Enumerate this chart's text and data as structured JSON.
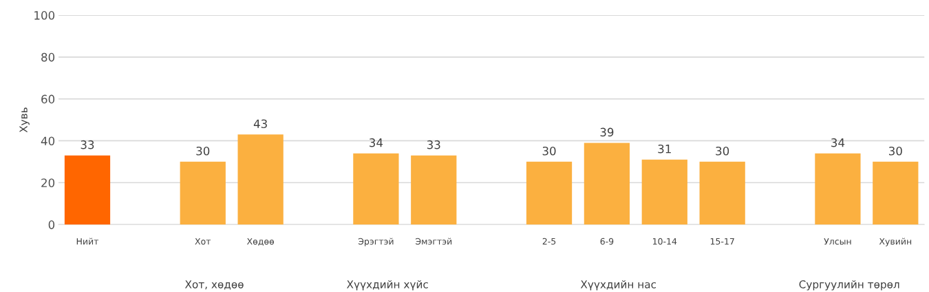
{
  "chart_data": {
    "type": "bar",
    "ylabel": "Хувь",
    "categories": [
      "Нийт",
      null,
      "Хот",
      "Хөдөө",
      null,
      "Эрэгтэй",
      "Эмэгтэй",
      null,
      "2-5",
      "6-9",
      "10-14",
      "15-17",
      null,
      "Улсын",
      "Хувийн"
    ],
    "values": [
      33,
      null,
      30,
      43,
      null,
      34,
      33,
      null,
      30,
      39,
      31,
      30,
      null,
      34,
      30
    ],
    "colors": [
      "#ff6600",
      null,
      "#fbb040",
      "#fbb040",
      null,
      "#fbb040",
      "#fbb040",
      null,
      "#fbb040",
      "#fbb040",
      "#fbb040",
      "#fbb040",
      null,
      "#fbb040",
      "#fbb040"
    ],
    "ylim": [
      0,
      100
    ],
    "yticks": [
      0,
      20,
      40,
      60,
      80,
      100
    ],
    "grid": "y",
    "data_labels": true,
    "annotations": [
      "Хот, хөдөө",
      "Хүүхдийн хүйс",
      "Хүүхдийн нас",
      "Сургуулийн төрөл"
    ]
  }
}
